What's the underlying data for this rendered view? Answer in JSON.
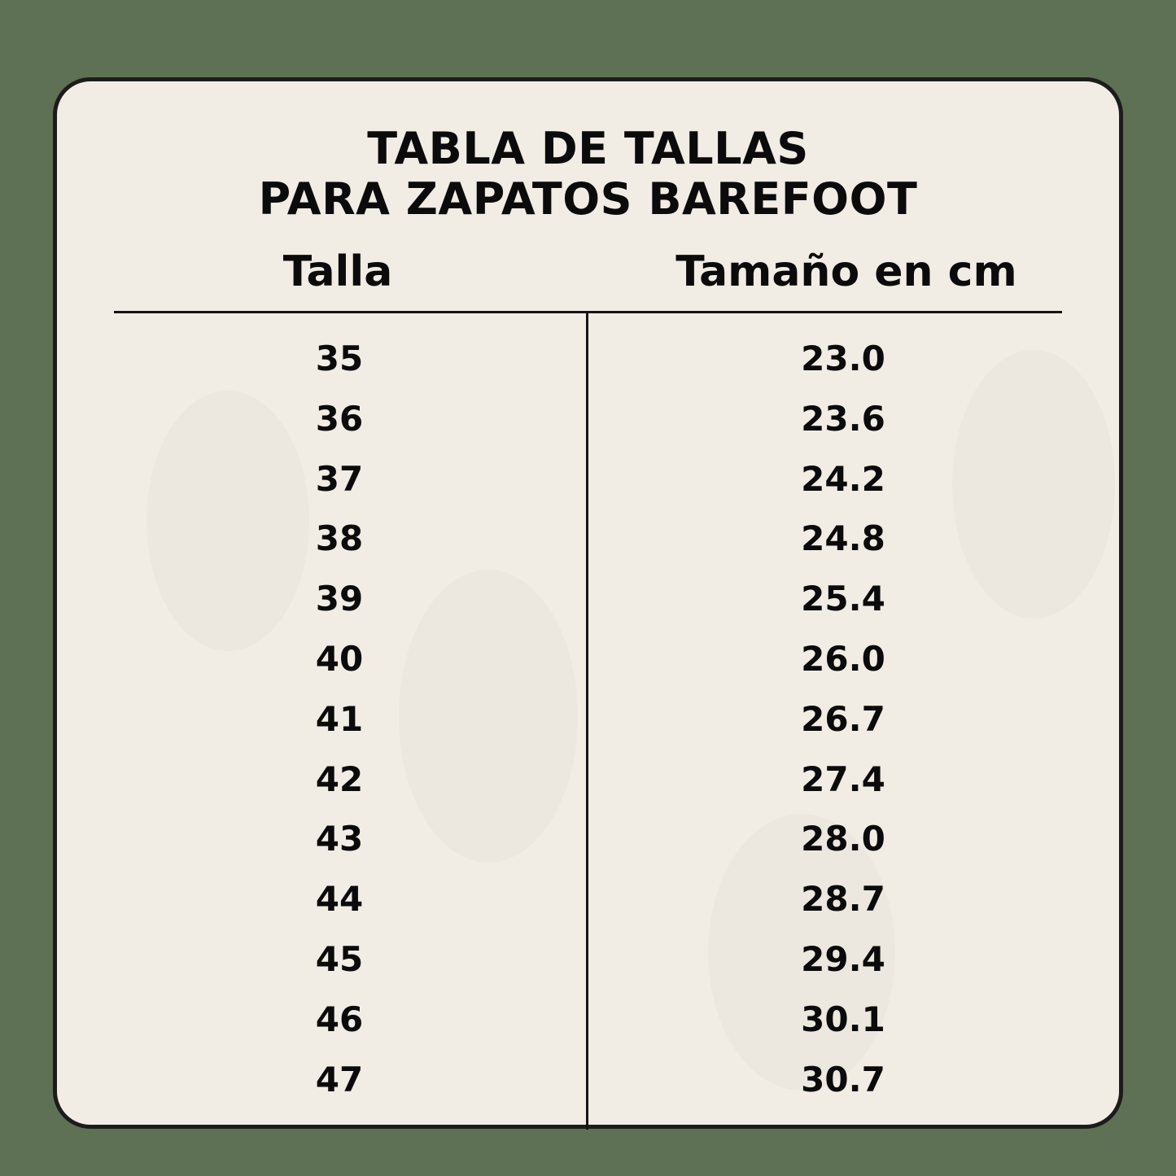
{
  "title": {
    "line1": "TABLA DE TALLAS",
    "line2": "PARA ZAPATOS BAREFOOT"
  },
  "colors": {
    "background": "#5f7155",
    "card": "#f1ece4",
    "text": "#0b0b0b"
  },
  "table": {
    "headers": [
      "Talla",
      "Tamaño en cm"
    ],
    "rows": [
      [
        "35",
        "23.0"
      ],
      [
        "36",
        "23.6"
      ],
      [
        "37",
        "24.2"
      ],
      [
        "38",
        "24.8"
      ],
      [
        "39",
        "25.4"
      ],
      [
        "40",
        "26.0"
      ],
      [
        "41",
        "26.7"
      ],
      [
        "42",
        "27.4"
      ],
      [
        "43",
        "28.0"
      ],
      [
        "44",
        "28.7"
      ],
      [
        "45",
        "29.4"
      ],
      [
        "46",
        "30.1"
      ],
      [
        "47",
        "30.7"
      ]
    ]
  }
}
